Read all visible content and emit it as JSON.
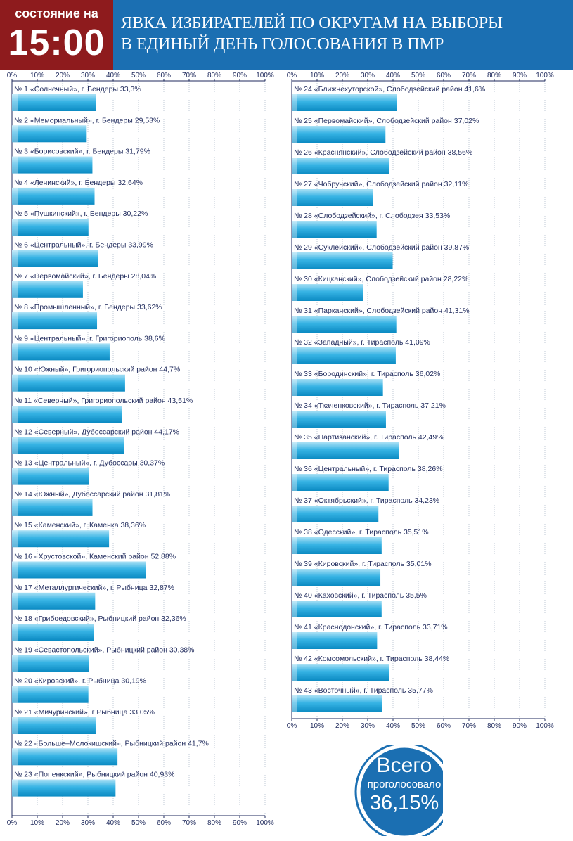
{
  "header": {
    "status_label": "состояние на",
    "time": "15:00",
    "title_line1": "ЯВКА ИЗБИРАТЕЛЕЙ ПО ОКРУГАМ НА ВЫБОРЫ",
    "title_line2": "В ЕДИНЫЙ ДЕНЬ ГОЛОСОВАНИЯ В ПМР"
  },
  "total": {
    "title": "Всего",
    "subtitle": "проголосовало",
    "value": "36,15%"
  },
  "colors": {
    "header_blue": "#1b6fb2",
    "status_red": "#8e1b1d",
    "bar_light": "#8fd3ef",
    "bar_dark": "#0d8fc6",
    "text": "#1f2a5c"
  },
  "chart_data": {
    "type": "bar",
    "orientation": "horizontal",
    "xlim": [
      0,
      100
    ],
    "tick_labels": [
      "0%",
      "10%",
      "20%",
      "30%",
      "40%",
      "50%",
      "60%",
      "70%",
      "80%",
      "90%",
      "100%"
    ],
    "grid": true,
    "panels": [
      {
        "categories": [
          "№ 1 «Солнечный», г. Бендеры 33,3%",
          "№ 2 «Мемориальный», г. Бендеры 29,53%",
          "№ 3 «Борисовский», г. Бендеры 31,79%",
          "№ 4 «Ленинский», г. Бендеры 32,64%",
          "№ 5 «Пушкинский», г. Бендеры 30,22%",
          "№ 6 «Центральный», г. Бендеры 33,99%",
          "№ 7 «Первомайский», г. Бендеры 28,04%",
          "№ 8 «Промышленный», г. Бендеры 33,62%",
          "№ 9 «Центральный», г. Григориополь 38,6%",
          "№ 10 «Южный», Григориопольский район 44,7%",
          "№ 11 «Северный», Григориопольский район 43,51%",
          "№ 12 «Северный», Дубоссарский район 44,17%",
          "№ 13 «Центральный», г. Дубоссары 30,37%",
          "№ 14 «Южный», Дубоссарский район 31,81%",
          "№ 15 «Каменский», г. Каменка 38,36%",
          "№ 16 «Хрустовской», Каменский район 52,88%",
          "№ 17 «Металлургический», г. Рыбница 32,87%",
          "№ 18 «Грибоедовский», Рыбницкий район 32,36%",
          "№ 19 «Севастопольский», Рыбницкий район 30,38%",
          "№ 20 «Кировский», г. Рыбница 30,19%",
          "№ 21 «Мичуринский», г Рыбница 33,05%",
          "№ 22 «Больше–Молокишский», Рыбницкий район 41,7%",
          "№ 23 «Попенкский», Рыбницкий район 40,93%"
        ],
        "values": [
          33.3,
          29.53,
          31.79,
          32.64,
          30.22,
          33.99,
          28.04,
          33.62,
          38.6,
          44.7,
          43.51,
          44.17,
          30.37,
          31.81,
          38.36,
          52.88,
          32.87,
          32.36,
          30.38,
          30.19,
          33.05,
          41.7,
          40.93
        ]
      },
      {
        "categories": [
          "№ 24 «Ближнехуторской», Слободзейский район 41,6%",
          "№ 25 «Первомайский», Слободзейский район 37,02%",
          "№ 26 «Краснянский», Слободзейский район 38,56%",
          "№ 27 «Чобручский», Слободзейский район 32,11%",
          "№ 28 «Слободзейский», г. Слободзея 33,53%",
          "№ 29 «Суклейский», Слободзейский район 39,87%",
          "№ 30 «Кицканский», Слободзейский район 28,22%",
          "№ 31 «Парканский», Слободзейский район 41,31%",
          "№ 32 «Западный», г. Тирасполь 41,09%",
          "№ 33 «Бородинский», г. Тирасполь 36,02%",
          "№ 34 «Ткаченковский», г. Тирасполь 37,21%",
          "№ 35 «Партизанский», г. Тирасполь 42,49%",
          "№ 36 «Центральный», г. Тирасполь 38,26%",
          "№ 37 «Октябрьский», г. Тирасполь 34,23%",
          "№ 38 «Одесский», г. Тирасполь 35,51%",
          "№ 39 «Кировский», г. Тирасполь 35,01%",
          "№ 40 «Каховский», г. Тирасполь 35,5%",
          "№ 41 «Краснодонский», г. Тирасполь 33,71%",
          "№ 42 «Комсомольский», г. Тирасполь 38,44%",
          "№ 43 «Восточный», г. Тирасполь 35,77%"
        ],
        "values": [
          41.6,
          37.02,
          38.56,
          32.11,
          33.53,
          39.87,
          28.22,
          41.31,
          41.09,
          36.02,
          37.21,
          42.49,
          38.26,
          34.23,
          35.51,
          35.01,
          35.5,
          33.71,
          38.44,
          35.77
        ]
      }
    ]
  }
}
